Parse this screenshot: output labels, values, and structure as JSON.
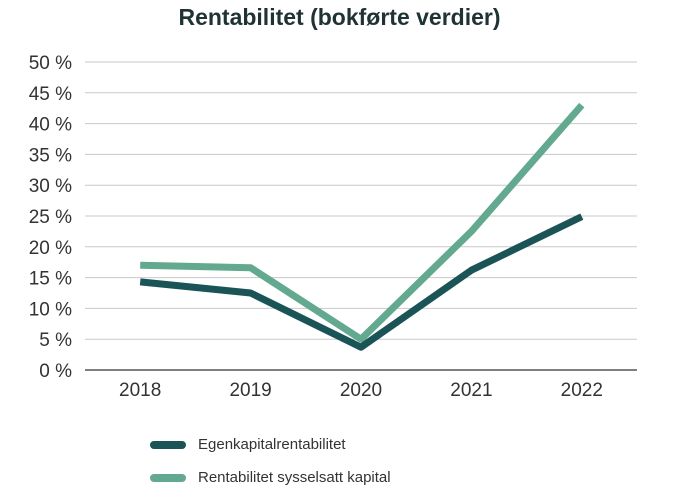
{
  "colors": {
    "series1": "#1b5457",
    "series2": "#63a98f",
    "grid": "#c9c9c9",
    "axis": "#333333"
  },
  "chart_data": {
    "type": "line",
    "title": "Rentabilitet (bokførte verdier)",
    "categories": [
      "2018",
      "2019",
      "2020",
      "2021",
      "2022"
    ],
    "ylim": [
      0,
      50
    ],
    "yticks": [
      0,
      5,
      10,
      15,
      20,
      25,
      30,
      35,
      40,
      45,
      50
    ],
    "ytick_labels": [
      "0 %",
      "5 %",
      "10 %",
      "15 %",
      "20 %",
      "25 %",
      "30 %",
      "35 %",
      "40 %",
      "45 %",
      "50 %"
    ],
    "grid": true,
    "legend_position": "bottom",
    "series": [
      {
        "name": "Egenkapitalrentabilitet",
        "values": [
          14.3,
          12.5,
          3.7,
          16.2,
          24.9
        ]
      },
      {
        "name": "Rentabilitet sysselsatt kapital",
        "values": [
          17.0,
          16.6,
          5.0,
          22.5,
          43.0
        ]
      }
    ]
  }
}
